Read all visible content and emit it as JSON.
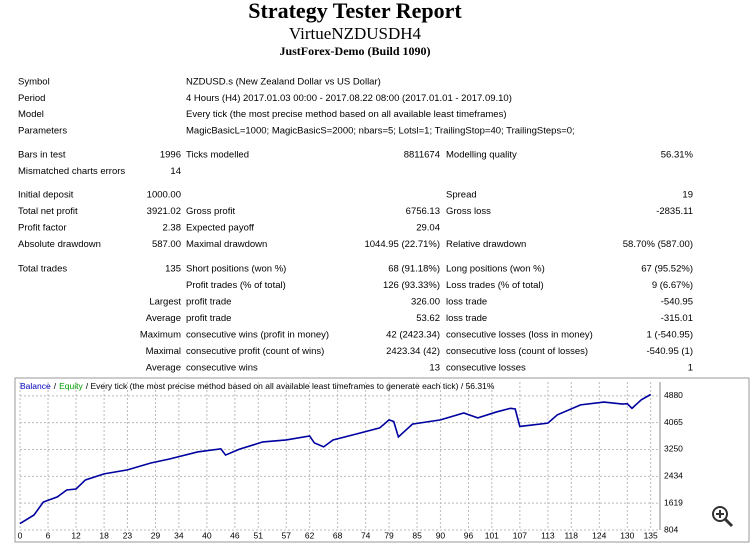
{
  "header": {
    "title": "Strategy Tester Report",
    "expert": "VirtueNZDUSDH4",
    "server": "JustForex-Demo (Build 1090)"
  },
  "info": [
    {
      "label": "Symbol",
      "value": "NZDUSD.s (New Zealand Dollar vs US Dollar)"
    },
    {
      "label": "Period",
      "value": "4 Hours (H4) 2017.01.03 00:00 - 2017.08.22 08:00 (2017.01.01 - 2017.09.10)"
    },
    {
      "label": "Model",
      "value": "Every tick (the most precise method based on all available least timeframes)"
    },
    {
      "label": "Parameters",
      "value": "MagicBasicL=1000; MagicBasicS=2000; nbars=5; Lotsl=1; TrailingStop=40; TrailingSteps=0;"
    }
  ],
  "stats": [
    [
      [
        "Bars in test",
        "1996",
        "Ticks modelled",
        "8811674",
        "Modelling quality",
        "56.31%"
      ],
      [
        "Mismatched charts errors",
        "14",
        null,
        null,
        null,
        null
      ]
    ],
    [
      [
        "Initial deposit",
        "1000.00",
        null,
        null,
        "Spread",
        "19"
      ],
      [
        "Total net profit",
        "3921.02",
        "Gross profit",
        "6756.13",
        "Gross loss",
        "-2835.11"
      ],
      [
        "Profit factor",
        "2.38",
        "Expected payoff",
        "29.04",
        null,
        null
      ],
      [
        "Absolute drawdown",
        "587.00",
        "Maximal drawdown",
        "1044.95 (22.71%)",
        "Relative drawdown",
        "58.70% (587.00)"
      ]
    ],
    [
      [
        "Total trades",
        "135",
        "Short positions (won %)",
        "68 (91.18%)",
        "Long positions (won %)",
        "67 (95.52%)"
      ],
      [
        null,
        null,
        "Profit trades (% of total)",
        "126 (93.33%)",
        "Loss trades (% of total)",
        "9 (6.67%)"
      ],
      [
        "Largest",
        null,
        "profit trade",
        "326.00",
        "loss trade",
        "-540.95"
      ],
      [
        "Average",
        null,
        "profit trade",
        "53.62",
        "loss trade",
        "-315.01"
      ],
      [
        "Maximum",
        null,
        "consecutive wins (profit in money)",
        "42 (2423.34)",
        "consecutive losses (loss in money)",
        "1 (-540.95)"
      ],
      [
        "Maximal",
        null,
        "consecutive profit (count of wins)",
        "2423.34 (42)",
        "consecutive loss (count of losses)",
        "-540.95 (1)"
      ],
      [
        "Average",
        null,
        "consecutive wins",
        "13",
        "consecutive losses",
        "1"
      ]
    ]
  ],
  "chart_data": {
    "type": "line",
    "legend": [
      "Balance",
      "Equity"
    ],
    "legend_separator": "/",
    "note": "/ Every tick (the most precise method based on all available least timeframes to generate each tick) / 56.31%",
    "legend_colors": [
      "#0000c0",
      "#00a000"
    ],
    "x": [
      0,
      3,
      5,
      8,
      10,
      12,
      14,
      18,
      23,
      28,
      32,
      38,
      43,
      44,
      47,
      52,
      57,
      62,
      63,
      65,
      67,
      72,
      77,
      79,
      80,
      81,
      84,
      90,
      95,
      98,
      102,
      105,
      106,
      107,
      113,
      115,
      120,
      125,
      129,
      130,
      131,
      133,
      135
    ],
    "series": [
      {
        "name": "Balance",
        "color": "#0000a0",
        "values": [
          1000,
          1260,
          1655,
          1810,
          2020,
          2050,
          2325,
          2510,
          2630,
          2840,
          2960,
          3175,
          3270,
          3080,
          3260,
          3480,
          3540,
          3660,
          3450,
          3330,
          3540,
          3720,
          3905,
          4150,
          4100,
          3630,
          4020,
          4150,
          4360,
          4210,
          4390,
          4500,
          4480,
          3950,
          4050,
          4300,
          4605,
          4690,
          4630,
          4640,
          4500,
          4760,
          4920
        ]
      }
    ],
    "xlim": [
      0,
      137
    ],
    "ylim": [
      804,
      5300
    ],
    "xticks": [
      0,
      6,
      12,
      18,
      23,
      29,
      34,
      40,
      46,
      51,
      57,
      62,
      68,
      74,
      79,
      85,
      90,
      96,
      101,
      107,
      113,
      118,
      124,
      130,
      135
    ],
    "yticks": [
      804,
      1619,
      2434,
      3250,
      4065,
      4880
    ],
    "grid": true
  }
}
